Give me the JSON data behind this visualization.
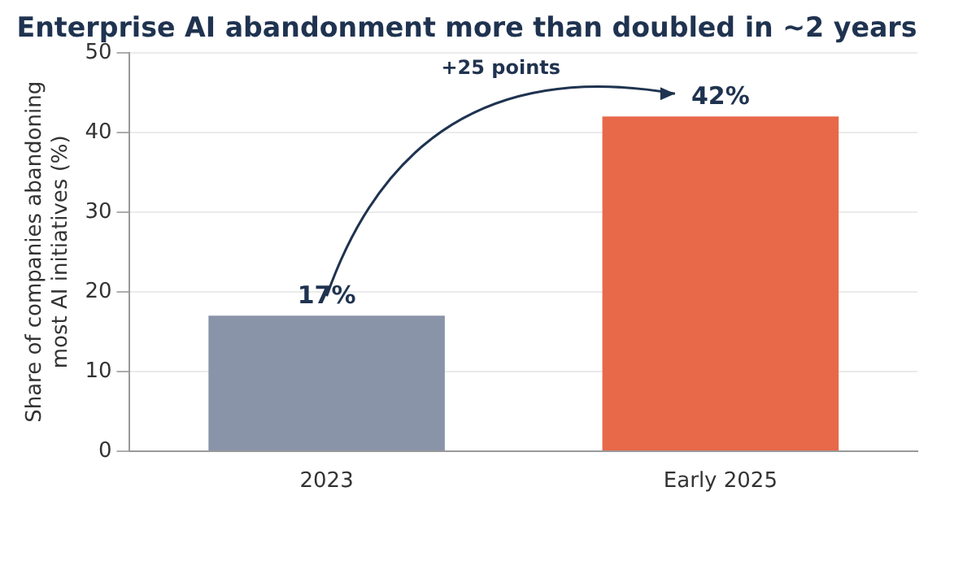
{
  "chart_data": {
    "type": "bar",
    "title": "Enterprise AI abandonment more than doubled in ~2 years",
    "ylabel": "Share of companies abandoning\nmost AI initiatives (%)",
    "categories": [
      "2023",
      "Early 2025"
    ],
    "values": [
      17,
      42
    ],
    "colors": [
      "#8a94a8",
      "#e8684a"
    ],
    "value_labels": [
      "17%",
      "42%"
    ],
    "annotations": [
      "+25 points"
    ],
    "ylim": [
      0,
      50
    ],
    "yticks": [
      0,
      10,
      20,
      30,
      40,
      50
    ],
    "grid": "y",
    "legend": false
  }
}
